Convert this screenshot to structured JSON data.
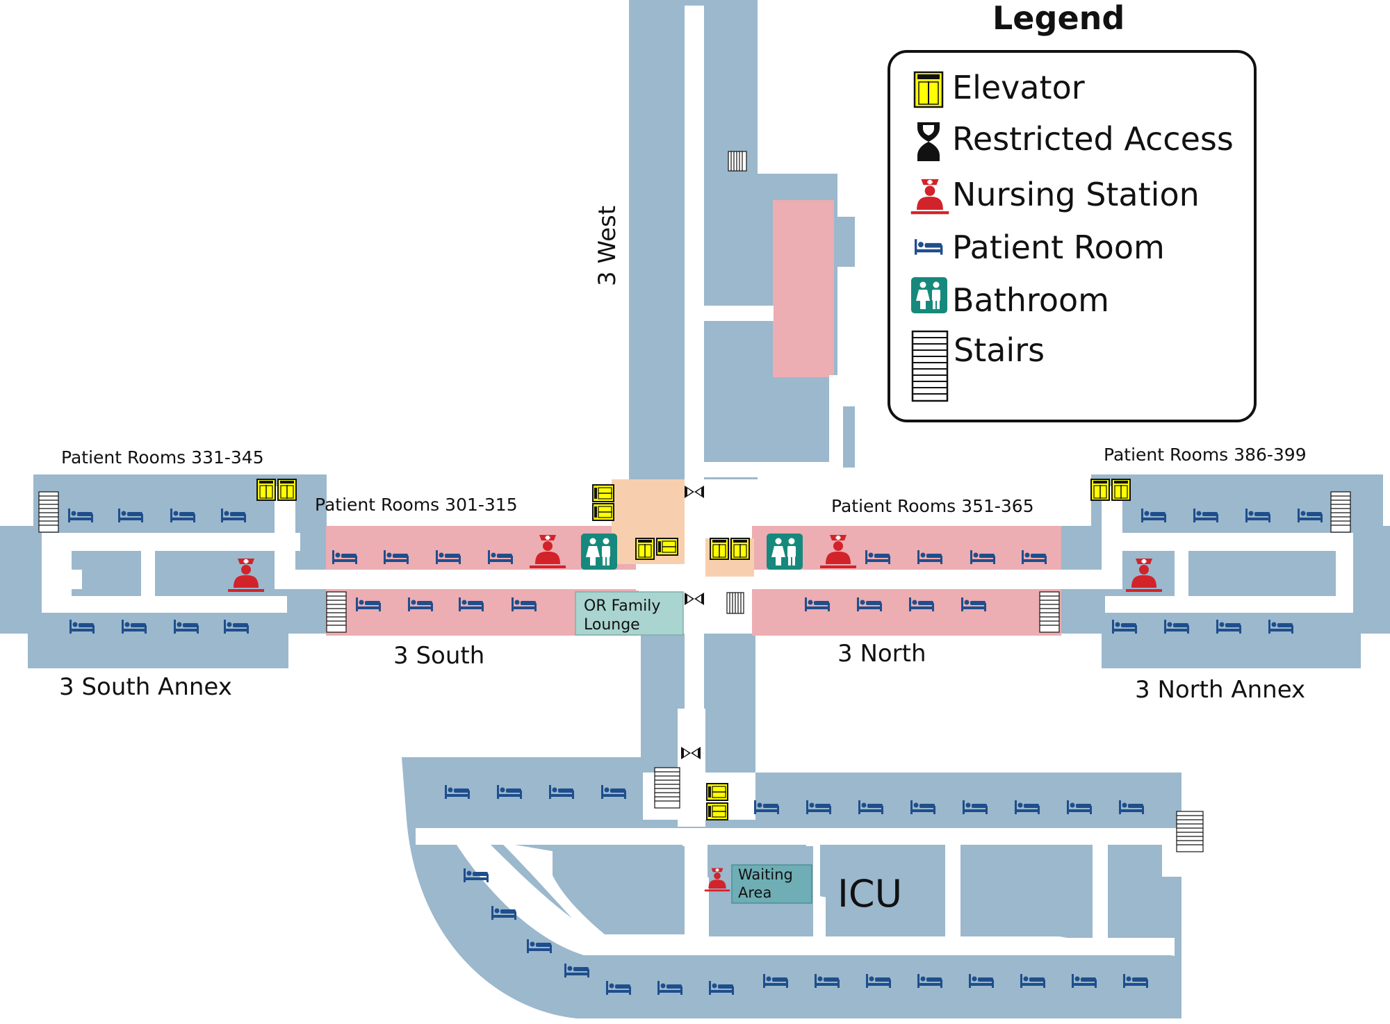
{
  "legend": {
    "title": "Legend",
    "items": [
      {
        "label": "Elevator",
        "icon": "elevator-icon"
      },
      {
        "label": "Restricted Access",
        "icon": "restricted-access-icon"
      },
      {
        "label": "Nursing Station",
        "icon": "nursing-station-icon"
      },
      {
        "label": "Patient Room",
        "icon": "patient-room-icon"
      },
      {
        "label": "Bathroom",
        "icon": "bathroom-icon"
      },
      {
        "label": "Stairs",
        "icon": "stairs-icon"
      }
    ]
  },
  "areas": {
    "west": "3 West",
    "south": "3 South",
    "north": "3 North",
    "south_annex": "3 South Annex",
    "north_annex": "3 North Annex",
    "icu": "ICU"
  },
  "room_ranges": {
    "r331": "Patient Rooms 331-345",
    "r301": "Patient Rooms 301-315",
    "r351": "Patient Rooms 351-365",
    "r386": "Patient Rooms 386-399"
  },
  "rooms": {
    "or_lounge_1": "OR Family",
    "or_lounge_2": "Lounge",
    "waiting_1": "Waiting",
    "waiting_2": "Area"
  },
  "colors": {
    "room": "#9bb8cd",
    "ward": "#ecadb3",
    "hallway": "#ffffff",
    "elevator": "#ffff00",
    "nursing": "#d2232a",
    "patient_bed": "#1f4e8c",
    "bathroom": "#16897c",
    "lounge": "#a9d4cf"
  }
}
